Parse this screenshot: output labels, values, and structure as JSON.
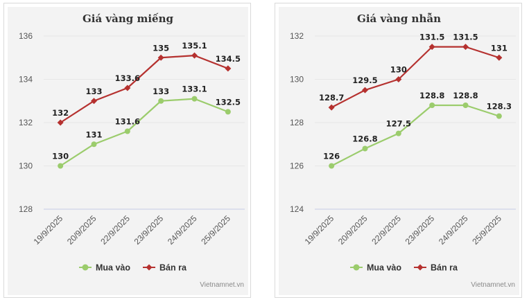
{
  "chart_data": [
    {
      "type": "line",
      "title": "Giá vàng miếng",
      "categories": [
        "19/9/2025",
        "20/9/2025",
        "22/9/2025",
        "23/9/2025",
        "24/9/2025",
        "25/9/2025"
      ],
      "ylim": [
        128,
        136
      ],
      "yticks": [
        128,
        130,
        132,
        134,
        136
      ],
      "grid": true,
      "legend": "bottom",
      "credit": "Vietnamnet.vn",
      "series": [
        {
          "name": "Mua vào",
          "color": "#9bcc6c",
          "marker": "circle",
          "values": [
            130,
            131,
            131.6,
            133,
            133.1,
            132.5
          ],
          "labels": [
            "130",
            "131",
            "131.6",
            "133",
            "133.1",
            "132.5"
          ]
        },
        {
          "name": "Bán ra",
          "color": "#b5312f",
          "marker": "diamond",
          "values": [
            132,
            133,
            133.6,
            135,
            135.1,
            134.5
          ],
          "labels": [
            "132",
            "133",
            "133.6",
            "135",
            "135.1",
            "134.5"
          ]
        }
      ]
    },
    {
      "type": "line",
      "title": "Giá vàng nhẫn",
      "categories": [
        "19/9/2025",
        "20/9/2025",
        "22/9/2025",
        "23/9/2025",
        "24/9/2025",
        "25/9/2025"
      ],
      "ylim": [
        124,
        132
      ],
      "yticks": [
        124,
        126,
        128,
        130,
        132
      ],
      "grid": true,
      "legend": "bottom",
      "credit": "Vietnamnet.vn",
      "series": [
        {
          "name": "Mua vào",
          "color": "#9bcc6c",
          "marker": "circle",
          "values": [
            126,
            126.8,
            127.5,
            128.8,
            128.8,
            128.3
          ],
          "labels": [
            "126",
            "126.8",
            "127.5",
            "128.8",
            "128.8",
            "128.3"
          ]
        },
        {
          "name": "Bán ra",
          "color": "#b5312f",
          "marker": "diamond",
          "values": [
            128.7,
            129.5,
            130,
            131.5,
            131.5,
            131
          ],
          "labels": [
            "128.7",
            "129.5",
            "130",
            "131.5",
            "131.5",
            "131"
          ]
        }
      ]
    }
  ]
}
